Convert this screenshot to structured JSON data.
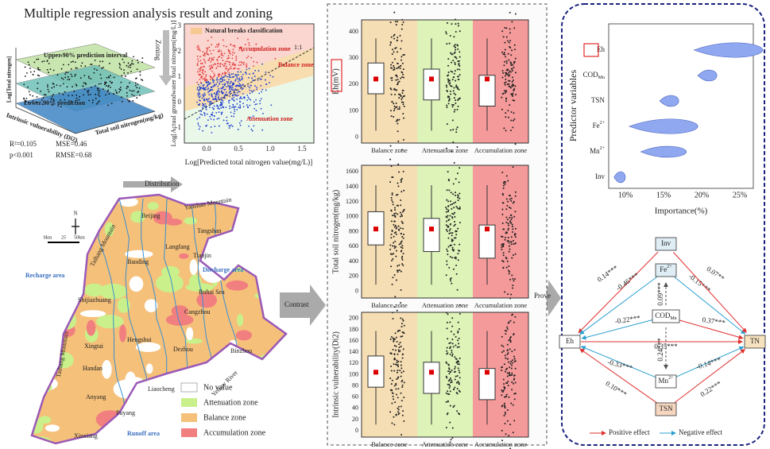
{
  "title": "Multiple regression analysis result and zoning",
  "regression": {
    "y_label": "Log[Total nitrogen]",
    "upper": "Upper 90% prediction interval",
    "lower": "Lower 90% prediction",
    "x_label": "Total soil nitrogen(mg/kg)",
    "z_label": "Intrinsic vulnerability (Di2)",
    "stats": [
      "R²=0.105",
      "MSE=0.46",
      "p<0.001",
      "RMSE=0.68"
    ]
  },
  "zoning_arrow": "Zoning",
  "scatter": {
    "legend": "Natural breaks classification",
    "zones": [
      "Accumulation zone",
      "Balance zone",
      "Attenuation zone"
    ],
    "line_label": "1:1",
    "y_label": "Log[Actual groundwater total nitrogen(mg/L)]",
    "x_label": "Log[Predicted total nitrogen value(mg/L)]",
    "yticks": [
      "-1",
      "0",
      "1",
      "2",
      "3"
    ],
    "xticks": [
      "0.0",
      "0.5",
      "1.0",
      "1.5"
    ]
  },
  "distribution_arrow": "Distribution",
  "map": {
    "north": "N",
    "scale": [
      "0km",
      "25",
      "50km"
    ],
    "places": [
      "Beijing",
      "Yanshan Mountain",
      "Tangshan",
      "Langfang",
      "Tianjin",
      "Taihang Mountain",
      "Baoding",
      "Discharge area",
      "Recharge area",
      "Bohai Sea",
      "Shijiazhuang",
      "Cangzhou",
      "Hengshui",
      "Dezhou",
      "Binzhou",
      "Xingtai",
      "Handan",
      "Liaocheng",
      "Yellow River",
      "Anyang",
      "Puyang",
      "Runoff area",
      "Xinxiang",
      "Taihang Mountain"
    ],
    "legend": [
      "No value",
      "Attenuation zone",
      "Balance zone",
      "Accumulation zone"
    ]
  },
  "contrast_arrow": "Contrast",
  "box_panels": [
    {
      "y_label": "Eh(mV)",
      "yticks": [
        "0",
        "100",
        "200",
        "300",
        "400"
      ],
      "categories": [
        "Balance zone",
        "Attenuation zone",
        "Accumulation zone"
      ]
    },
    {
      "y_label": "Total soil nitrogen(mg/kg)",
      "yticks": [
        "0",
        "200",
        "400",
        "600",
        "800",
        "1000",
        "1200",
        "1400",
        "1600"
      ],
      "categories": [
        "Balance zone",
        "Attenuation zone",
        "Accumulation zone"
      ]
    },
    {
      "y_label": "Intrinsic vulnerability(Di2)",
      "yticks": [
        "0",
        "20",
        "40",
        "60",
        "80",
        "100",
        "120",
        "140",
        "160",
        "180",
        "200"
      ],
      "categories": [
        "Balance zone",
        "Attenuation zone",
        "Accumulation zone"
      ]
    }
  ],
  "prove_arrow": "Prove",
  "importance": {
    "y_label": "Predictor variables",
    "x_label": "Importance(%)",
    "xticks": [
      "10%",
      "15%",
      "20%",
      "25%"
    ],
    "variables": [
      {
        "text": "Eh"
      },
      {
        "text": "COD",
        "sub": "Mn"
      },
      {
        "text": "TSN"
      },
      {
        "text": "Fe",
        "sup": "2+"
      },
      {
        "text": "Mn",
        "sup": "2+"
      },
      {
        "text": "Inv"
      }
    ]
  },
  "sem": {
    "nodes": [
      {
        "text": "Inv"
      },
      {
        "text": "Fe",
        "sup": "2+"
      },
      {
        "text": "COD",
        "sub": "Mn"
      },
      {
        "text": "Eh"
      },
      {
        "text": "TN"
      },
      {
        "text": "Mn",
        "sup": "2+"
      },
      {
        "text": "TSN"
      }
    ],
    "edges": [
      "0.14***",
      "-0.46***",
      "0.09***",
      "-0.15***",
      "0.07**",
      "-0.22***",
      "0.37***",
      "0.35***",
      "-0.33***",
      "0.24***",
      "-0.14***",
      "0.10***",
      "0.22***"
    ],
    "legend": [
      "Positive effect",
      "Negative effect"
    ]
  }
}
